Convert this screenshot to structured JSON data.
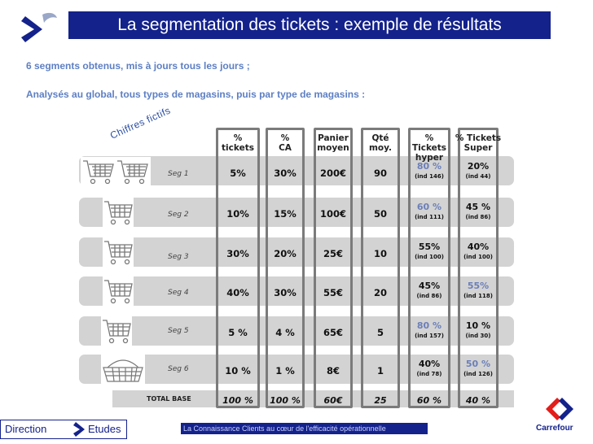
{
  "title": "La segmentation des tickets : exemple de résultats",
  "intro_line1": "6 segments obtenus, mis à jours tous les jours ;",
  "intro_line2": "Analysés au global, tous types de magasins, puis par type de magasins :",
  "annotation": "Chiffres fictifs",
  "headers": {
    "tickets": [
      "%",
      "tickets"
    ],
    "ca": [
      "%",
      "CA"
    ],
    "panier": [
      "Panier",
      "moyen"
    ],
    "qte": [
      "Qté",
      "moy."
    ],
    "hyper": [
      "% Tickets",
      "hyper"
    ],
    "super": [
      "% Tickets",
      "Super"
    ]
  },
  "rows": [
    {
      "label": "Seg 1",
      "icon": "two-carts-icon",
      "tickets": "5%",
      "ca": "30%",
      "panier": "200€",
      "qte": "90",
      "hyper": "80 %",
      "hyper_ind": "(ind 146)",
      "super": "20%",
      "super_ind": "(ind 44)"
    },
    {
      "label": "Seg 2",
      "icon": "cart-icon",
      "tickets": "10%",
      "ca": "15%",
      "panier": "100€",
      "qte": "50",
      "hyper": "60 %",
      "hyper_ind": "(ind 111)",
      "super": "45 %",
      "super_ind": "(ind 86)"
    },
    {
      "label": "Seg 3",
      "icon": "cart-icon",
      "tickets": "30%",
      "ca": "20%",
      "panier": "25€",
      "qte": "10",
      "hyper": "55%",
      "hyper_ind": "(ind 100)",
      "super": "40%",
      "super_ind": "(ind 100)"
    },
    {
      "label": "Seg 4",
      "icon": "cart-icon",
      "tickets": "40%",
      "ca": "30%",
      "panier": "55€",
      "qte": "20",
      "hyper": "45%",
      "hyper_ind": "(ind 86)",
      "super": "55%",
      "super_ind": "(ind 118)"
    },
    {
      "label": "Seg 5",
      "icon": "cart-icon",
      "tickets": "5 %",
      "ca": "4 %",
      "panier": "65€",
      "qte": "5",
      "hyper": "80 %",
      "hyper_ind": "(ind 157)",
      "super": "10 %",
      "super_ind": "(ind 30)"
    },
    {
      "label": "Seg 6",
      "icon": "basket-icon",
      "tickets": "10 %",
      "ca": "1 %",
      "panier": "8€",
      "qte": "1",
      "hyper": "40%",
      "hyper_ind": "(ind 78)",
      "super": "50 %",
      "super_ind": "(ind 126)"
    }
  ],
  "value_colors": {
    "hyper": [
      "#6b7fb8",
      "#6b7fb8",
      "#111111",
      "#111111",
      "#6b7fb8",
      "#111111"
    ],
    "super": [
      "#111111",
      "#111111",
      "#111111",
      "#6b7fb8",
      "#111111",
      "#6b7fb8"
    ]
  },
  "total": {
    "label": "TOTAL BASE",
    "tickets": "100 %",
    "ca": "100 %",
    "panier": "60€",
    "qte": "25",
    "hyper": "60 %",
    "super": "40 %"
  },
  "footer": {
    "direction_word1": "Direction",
    "direction_word2": "Etudes",
    "tagline": "La Connaissance Clients au cœur de l'efficacité opérationnelle",
    "brand": "Carrefour"
  },
  "colors": {
    "title_bg": "#14228b",
    "intro_text": "#5d7fc4",
    "row_bg": "#d3d3d3",
    "frame": "#7b7b7b"
  }
}
